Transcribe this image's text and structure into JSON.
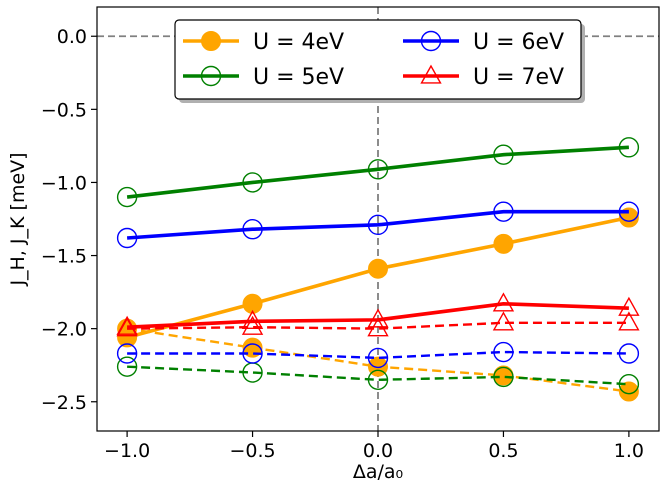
{
  "chart_data": {
    "type": "line",
    "title": "",
    "xlabel": "Δa/a₀",
    "ylabel": "J_H, J_K [meV]",
    "xlim": [
      -1.12,
      1.12
    ],
    "ylim": [
      -2.7,
      0.2
    ],
    "xticks": [
      -1.0,
      -0.5,
      0.0,
      0.5,
      1.0
    ],
    "xtick_labels": [
      "−1.0",
      "−0.5",
      "0.0",
      "0.5",
      "1.0"
    ],
    "yticks": [
      0.0,
      -0.5,
      -1.0,
      -1.5,
      -2.0,
      -2.5
    ],
    "ytick_labels": [
      "0.0",
      "−0.5",
      "−1.0",
      "−1.5",
      "−2.0",
      "−2.5"
    ],
    "reference_lines": {
      "y": 0.0,
      "x": 0.0,
      "style": "dashed",
      "color": "#808080"
    },
    "grid": false,
    "legend_position": "upper-center",
    "legend_columns": 2,
    "x": [
      -1.0,
      -0.5,
      0.0,
      0.5,
      1.0
    ],
    "series": [
      {
        "name": "U = 4eV",
        "color": "#ffa500",
        "marker": "filled-circle",
        "linestyle": "solid",
        "values": [
          -2.06,
          -1.83,
          -1.59,
          -1.42,
          -1.24
        ]
      },
      {
        "name": "",
        "color": "#ffa500",
        "marker": "filled-circle",
        "linestyle": "dashed",
        "values": [
          -2.0,
          -2.13,
          -2.26,
          -2.32,
          -2.43
        ]
      },
      {
        "name": "U = 5eV",
        "color": "#008000",
        "marker": "open-circle",
        "linestyle": "solid",
        "values": [
          -1.1,
          -1.0,
          -0.91,
          -0.81,
          -0.76
        ]
      },
      {
        "name": "",
        "color": "#008000",
        "marker": "open-circle",
        "linestyle": "dashed",
        "values": [
          -2.26,
          -2.3,
          -2.35,
          -2.33,
          -2.38
        ]
      },
      {
        "name": "U = 6eV",
        "color": "#0000ff",
        "marker": "open-circle",
        "linestyle": "solid",
        "values": [
          -1.38,
          -1.32,
          -1.29,
          -1.2,
          -1.2
        ]
      },
      {
        "name": "",
        "color": "#0000ff",
        "marker": "open-circle",
        "linestyle": "dashed",
        "values": [
          -2.17,
          -2.17,
          -2.2,
          -2.16,
          -2.17
        ]
      },
      {
        "name": "U = 7eV",
        "color": "#ff0000",
        "marker": "open-triangle",
        "linestyle": "solid",
        "values": [
          -1.99,
          -1.95,
          -1.94,
          -1.83,
          -1.86
        ]
      },
      {
        "name": "",
        "color": "#ff0000",
        "marker": "open-triangle",
        "linestyle": "dashed",
        "values": [
          -2.0,
          -1.99,
          -2.0,
          -1.96,
          -1.96
        ]
      }
    ],
    "legend": [
      {
        "label": "U = 4eV",
        "series_index": 0
      },
      {
        "label": "U = 6eV",
        "series_index": 4
      },
      {
        "label": "U = 5eV",
        "series_index": 2
      },
      {
        "label": "U = 7eV",
        "series_index": 6
      }
    ]
  }
}
